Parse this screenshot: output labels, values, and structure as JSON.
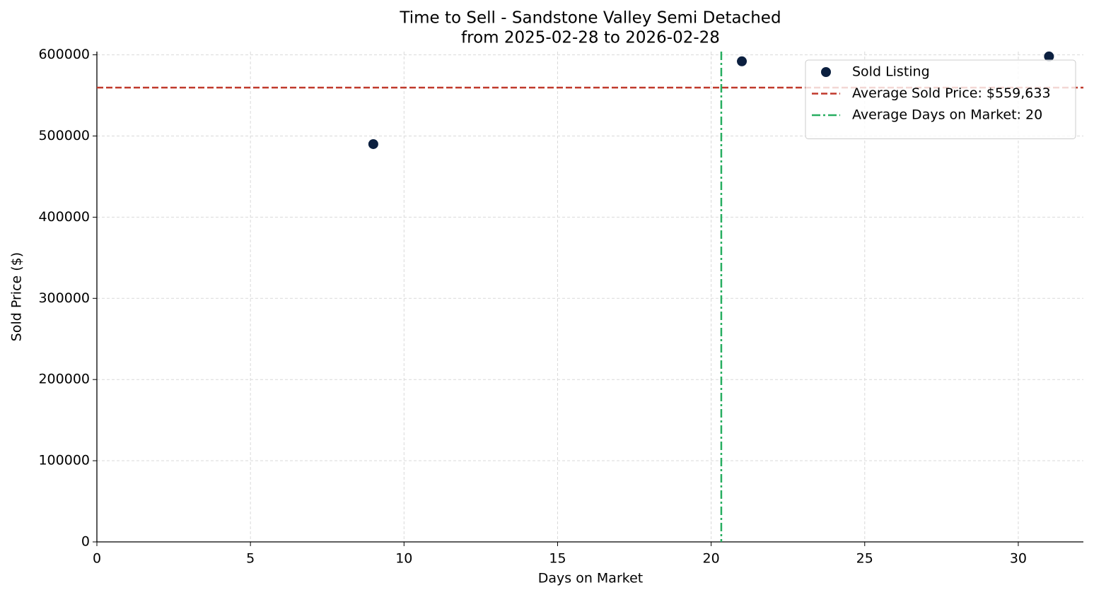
{
  "chart_data": {
    "type": "scatter",
    "title": "Time to Sell - Sandstone Valley Semi Detached",
    "subtitle": "from 2025-02-28 to 2026-02-28",
    "x_label": "Days on Market",
    "y_label": "Sold Price ($)",
    "series": [
      {
        "name": "Sold Listing",
        "color": "#0b1f3f",
        "x": [
          9,
          21,
          31
        ],
        "values": [
          490000,
          592000,
          598000
        ]
      }
    ],
    "hlines": [
      {
        "name": "Average Sold Price: $559,633",
        "value": 559633,
        "color": "#c0392b"
      }
    ],
    "vlines": [
      {
        "name": "Average Days on Market: 20",
        "value": 20.33,
        "color": "#27ae60"
      }
    ],
    "xlim": [
      0,
      32.12
    ],
    "ylim": [
      0,
      604000
    ],
    "xticks": [
      0,
      5,
      10,
      15,
      20,
      25,
      30
    ],
    "yticks": [
      0,
      100000,
      200000,
      300000,
      400000,
      500000,
      600000
    ],
    "grid": true,
    "legend": "upper right"
  }
}
